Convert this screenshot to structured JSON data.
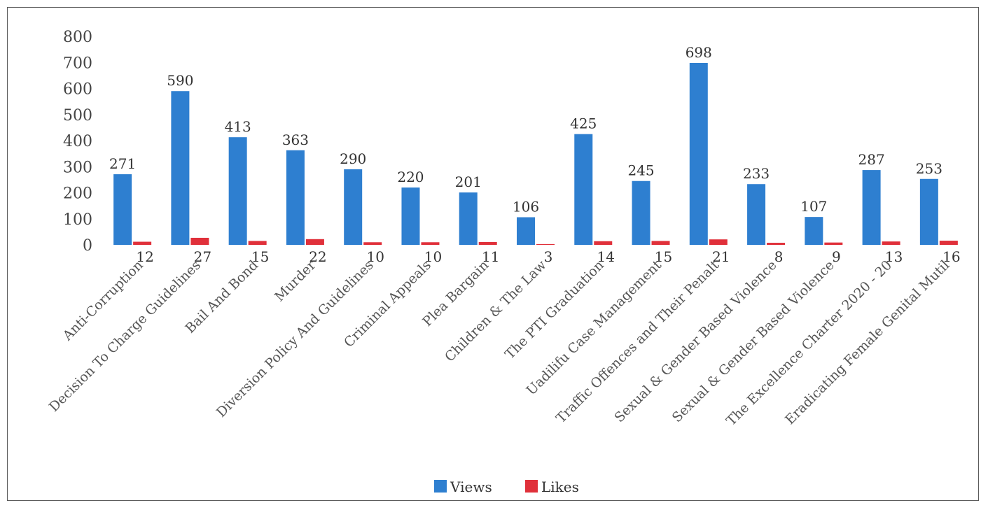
{
  "chart_data": {
    "type": "bar",
    "title": "",
    "xlabel": "",
    "ylabel": "",
    "ylim": [
      0,
      800
    ],
    "yticks": [
      0,
      100,
      200,
      300,
      400,
      500,
      600,
      700,
      800
    ],
    "grid": false,
    "legend_position": "bottom",
    "categories": [
      "Anti-Corruption",
      "Decision To Charge Guidelines",
      "Bail And Bond",
      "Murder",
      "Diversion Policy And Guidelines",
      "Criminal Appeals",
      "Plea Bargain",
      "Children & The Law",
      "The PTI Graduation",
      "Uadilifu Case Management",
      "Traffic Offences and Their Penalt",
      "Sexual & Gender Based Violence",
      "Sexual & Gender Based Violence",
      "The Excellence Charter 2020 - 20",
      "Eradicating Female Genital Mutil"
    ],
    "series": [
      {
        "name": "Views",
        "color": "#2e7fd0",
        "values": [
          271,
          590,
          413,
          363,
          290,
          220,
          201,
          106,
          425,
          245,
          698,
          233,
          107,
          287,
          253
        ]
      },
      {
        "name": "Likes",
        "color": "#e0303a",
        "values": [
          12,
          27,
          15,
          22,
          10,
          10,
          11,
          3,
          14,
          15,
          21,
          8,
          9,
          13,
          16
        ]
      }
    ]
  }
}
